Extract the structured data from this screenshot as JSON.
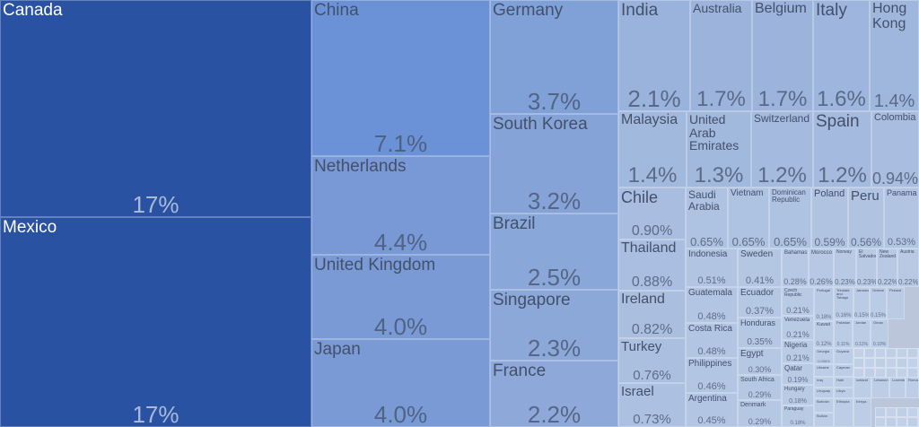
{
  "chart_data": {
    "type": "treemap",
    "items": [
      {
        "name": "Canada",
        "value": "17%",
        "color": "#2a52a3"
      },
      {
        "name": "Mexico",
        "value": "17%",
        "color": "#2a52a3"
      },
      {
        "name": "China",
        "value": "7.1%",
        "color": "#6b92d6"
      },
      {
        "name": "Netherlands",
        "value": "4.4%",
        "color": "#7898d6"
      },
      {
        "name": "United Kingdom",
        "value": "4.0%",
        "color": "#7a9ad6"
      },
      {
        "name": "Japan",
        "value": "4.0%",
        "color": "#7a9ad6"
      },
      {
        "name": "Germany",
        "value": "3.7%",
        "color": "#80a0d8"
      },
      {
        "name": "South Korea",
        "value": "3.2%",
        "color": "#86a3d8"
      },
      {
        "name": "Brazil",
        "value": "2.5%",
        "color": "#8aa7d9"
      },
      {
        "name": "Singapore",
        "value": "2.3%",
        "color": "#8ca8d9"
      },
      {
        "name": "France",
        "value": "2.2%",
        "color": "#8ea9d9"
      },
      {
        "name": "India",
        "value": "2.1%",
        "color": "#9ab3dc"
      },
      {
        "name": "Australia",
        "value": "1.7%",
        "color": "#9cb4dc"
      },
      {
        "name": "Belgium",
        "value": "1.7%",
        "color": "#9cb4dc"
      },
      {
        "name": "Italy",
        "value": "1.6%",
        "color": "#9eb6dd"
      },
      {
        "name": "Hong Kong",
        "value": "1.4%",
        "color": "#a0b7dd"
      },
      {
        "name": "Malaysia",
        "value": "1.4%",
        "color": "#a2b9de"
      },
      {
        "name": "United Arab Emirates",
        "value": "1.3%",
        "color": "#a2b9de"
      },
      {
        "name": "Switzerland",
        "value": "1.2%",
        "color": "#a4badf"
      },
      {
        "name": "Spain",
        "value": "1.2%",
        "color": "#a4badf"
      },
      {
        "name": "Colombia",
        "value": "0.94%",
        "color": "#a8bddf"
      },
      {
        "name": "Chile",
        "value": "0.90%",
        "color": "#a8bde0"
      },
      {
        "name": "Thailand",
        "value": "0.88%",
        "color": "#a9bee0"
      },
      {
        "name": "Ireland",
        "value": "0.82%",
        "color": "#aabfe0"
      },
      {
        "name": "Turkey",
        "value": "0.76%",
        "color": "#abc0e0"
      },
      {
        "name": "Israel",
        "value": "0.73%",
        "color": "#acc1e1"
      },
      {
        "name": "Saudi Arabia",
        "value": "0.65%",
        "color": "#aec2e1"
      },
      {
        "name": "Vietnam",
        "value": "0.65%",
        "color": "#aec2e1"
      },
      {
        "name": "Dominican Republic",
        "value": "0.65%",
        "color": "#aec2e1"
      },
      {
        "name": "Poland",
        "value": "0.59%",
        "color": "#b0c3e1"
      },
      {
        "name": "Peru",
        "value": "0.56%",
        "color": "#b0c3e1"
      },
      {
        "name": "Panama",
        "value": "0.53%",
        "color": "#b1c4e2"
      },
      {
        "name": "Indonesia",
        "value": "0.51%",
        "color": "#b1c4e2"
      },
      {
        "name": "Sweden",
        "value": "0.41%",
        "color": "#b3c6e2"
      },
      {
        "name": "Bahamas",
        "value": "0.28%",
        "color": "#b6c8e3"
      },
      {
        "name": "Morocco",
        "value": "0.26%",
        "color": "#b6c8e3"
      },
      {
        "name": "Norway",
        "value": "0.23%",
        "color": "#b7c9e3"
      },
      {
        "name": "El Salvador",
        "value": "0.23%",
        "color": "#b7c9e3"
      },
      {
        "name": "New Zealand",
        "value": "0.22%",
        "color": "#b7c9e3"
      },
      {
        "name": "Austria",
        "value": "0.22%",
        "color": "#b7c9e3"
      },
      {
        "name": "Guatemala",
        "value": "0.48%",
        "color": "#b2c5e2"
      },
      {
        "name": "Costa Rica",
        "value": "0.48%",
        "color": "#b2c5e2"
      },
      {
        "name": "Philippines",
        "value": "0.46%",
        "color": "#b2c5e2"
      },
      {
        "name": "Argentina",
        "value": "0.45%",
        "color": "#b2c5e2"
      },
      {
        "name": "Ecuador",
        "value": "0.37%",
        "color": "#b4c7e3"
      },
      {
        "name": "Honduras",
        "value": "0.35%",
        "color": "#b4c7e3"
      },
      {
        "name": "Egypt",
        "value": "0.30%",
        "color": "#b5c8e3"
      },
      {
        "name": "South Africa",
        "value": "0.29%",
        "color": "#b5c8e3"
      },
      {
        "name": "Denmark",
        "value": "0.29%",
        "color": "#b5c8e3"
      },
      {
        "name": "Czech Republic",
        "value": "0.21%",
        "color": "#b8cae4"
      },
      {
        "name": "Venezuela",
        "value": "0.21%",
        "color": "#b8cae4"
      },
      {
        "name": "Nigeria",
        "value": "0.21%",
        "color": "#b8cae4"
      },
      {
        "name": "Qatar",
        "value": "0.19%",
        "color": "#b9cae4"
      },
      {
        "name": "Hungary",
        "value": "0.18%",
        "color": "#b9cae4"
      },
      {
        "name": "Paraguay",
        "value": "0.18%",
        "color": "#b9cae4"
      },
      {
        "name": "Portugal",
        "value": "0.18%",
        "color": "#b9cae4"
      },
      {
        "name": "Kuwait",
        "value": "0.12%",
        "color": "#bbcce5"
      },
      {
        "name": "Trinidad and Tobago",
        "value": "0.16%",
        "color": "#bacbe4"
      },
      {
        "name": "Jamaica",
        "value": "0.15%",
        "color": "#bacbe4"
      },
      {
        "name": "Greece",
        "value": "0.15%",
        "color": "#bacbe4"
      },
      {
        "name": "Finland",
        "value": "",
        "color": "#bacbe4"
      },
      {
        "name": "Pakistan",
        "value": "0.11%",
        "color": "#bbcce5"
      },
      {
        "name": "Jordan",
        "value": "0.11%",
        "color": "#bbcce5"
      },
      {
        "name": "Oman",
        "value": "0.10%",
        "color": "#bbcce5"
      },
      {
        "name": "Georgia",
        "value": "0.098%",
        "color": "#bccde5"
      },
      {
        "name": "Guyana",
        "value": "",
        "color": "#bccde5"
      },
      {
        "name": "Ukraine",
        "value": "",
        "color": "#bccde5"
      },
      {
        "name": "Cayman",
        "value": "",
        "color": "#bccde5"
      },
      {
        "name": "Iraq",
        "value": "",
        "color": "#bccde5"
      },
      {
        "name": "Haiti",
        "value": "",
        "color": "#bccde5"
      },
      {
        "name": "Libya",
        "value": "",
        "color": "#bccde5"
      },
      {
        "name": "Uruguay",
        "value": "",
        "color": "#bccde5"
      },
      {
        "name": "Bahrain",
        "value": "",
        "color": "#bccde5"
      },
      {
        "name": "Ethiopia",
        "value": "",
        "color": "#bccde5"
      },
      {
        "name": "Bolivia",
        "value": "",
        "color": "#bccde5"
      },
      {
        "name": "Kenya",
        "value": "",
        "color": "#bccde5"
      },
      {
        "name": "Iceland",
        "value": "",
        "color": "#bccde5"
      },
      {
        "name": "Lebanon",
        "value": "",
        "color": "#bccde5"
      },
      {
        "name": "Luxembourg",
        "value": "",
        "color": "#bccde5"
      },
      {
        "name": "Romania",
        "value": "",
        "color": "#bccde5"
      }
    ]
  }
}
